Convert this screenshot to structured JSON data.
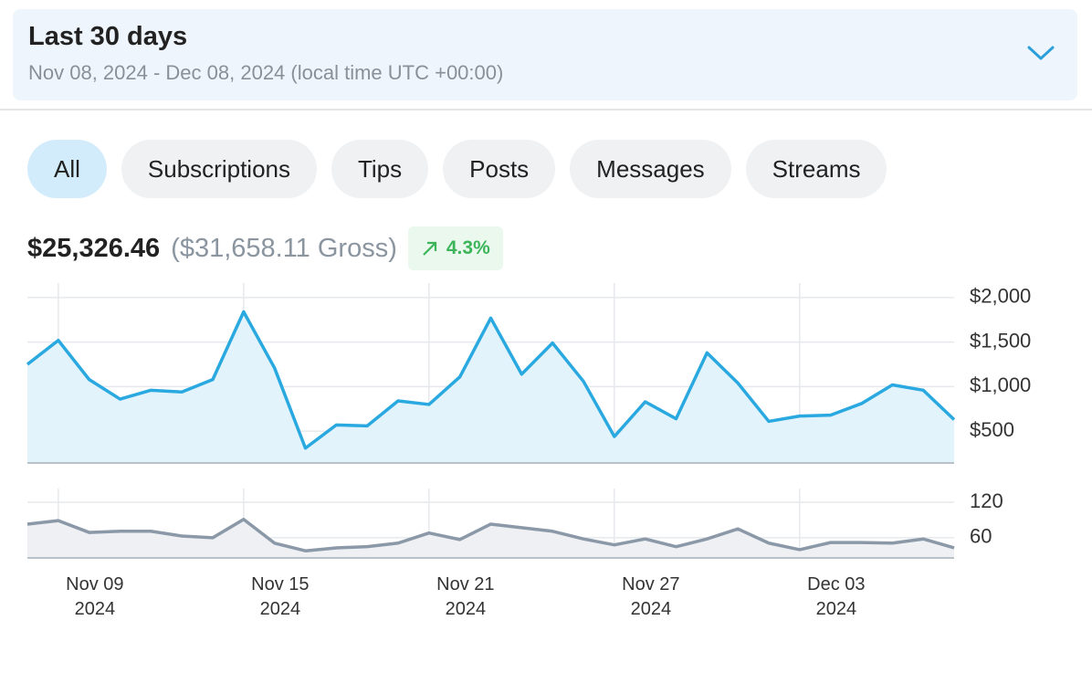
{
  "header": {
    "title": "Last 30 days",
    "subtitle": "Nov 08, 2024 - Dec 08, 2024 (local time UTC +00:00)"
  },
  "tabs": [
    "All",
    "Subscriptions",
    "Tips",
    "Posts",
    "Messages",
    "Streams"
  ],
  "summary": {
    "net": "$25,326.46",
    "gross": "($31,658.11 Gross)",
    "change": "4.3%"
  },
  "chart_data": [
    {
      "type": "area",
      "color": "#2aa8e0",
      "fill": "#e2f3fb",
      "x": [
        "2024-11-08",
        "2024-11-09",
        "2024-11-10",
        "2024-11-11",
        "2024-11-12",
        "2024-11-13",
        "2024-11-14",
        "2024-11-15",
        "2024-11-16",
        "2024-11-17",
        "2024-11-18",
        "2024-11-19",
        "2024-11-20",
        "2024-11-21",
        "2024-11-22",
        "2024-11-23",
        "2024-11-24",
        "2024-11-25",
        "2024-11-26",
        "2024-11-27",
        "2024-11-28",
        "2024-11-29",
        "2024-11-30",
        "2024-12-01",
        "2024-12-02",
        "2024-12-03",
        "2024-12-04",
        "2024-12-05",
        "2024-12-06",
        "2024-12-07",
        "2024-12-08"
      ],
      "xlim": [
        "2024-11-08",
        "2024-12-08"
      ],
      "values": [
        1250,
        1520,
        1080,
        860,
        960,
        940,
        1080,
        1840,
        1210,
        310,
        570,
        560,
        840,
        800,
        1110,
        1770,
        1140,
        1490,
        1060,
        440,
        830,
        640,
        1380,
        1040,
        610,
        670,
        680,
        810,
        1020,
        960,
        630
      ],
      "ylim": [
        143,
        2163
      ],
      "yticks": [
        {
          "value": 500,
          "label": "$500"
        },
        {
          "value": 1000,
          "label": "$1,000"
        },
        {
          "value": 1500,
          "label": "$1,500"
        },
        {
          "value": 2000,
          "label": "$2,000"
        }
      ],
      "grid": true
    },
    {
      "type": "area",
      "color": "#8a98a8",
      "fill": "#eef0f3",
      "x": [
        "2024-11-08",
        "2024-11-09",
        "2024-11-10",
        "2024-11-11",
        "2024-11-12",
        "2024-11-13",
        "2024-11-14",
        "2024-11-15",
        "2024-11-16",
        "2024-11-17",
        "2024-11-18",
        "2024-11-19",
        "2024-11-20",
        "2024-11-21",
        "2024-11-22",
        "2024-11-23",
        "2024-11-24",
        "2024-11-25",
        "2024-11-26",
        "2024-11-27",
        "2024-11-28",
        "2024-11-29",
        "2024-11-30",
        "2024-12-01",
        "2024-12-02",
        "2024-12-03",
        "2024-12-04",
        "2024-12-05",
        "2024-12-06",
        "2024-12-07",
        "2024-12-08"
      ],
      "xlim": [
        "2024-11-08",
        "2024-12-08"
      ],
      "values": [
        83,
        89,
        69,
        71,
        71,
        63,
        60,
        91,
        51,
        38,
        43,
        45,
        51,
        68,
        57,
        83,
        77,
        71,
        58,
        48,
        58,
        45,
        58,
        75,
        51,
        40,
        52,
        52,
        51,
        58,
        43
      ],
      "ylim": [
        26,
        143
      ],
      "yticks": [
        60,
        120
      ],
      "xticks": [
        {
          "value": "2024-11-09",
          "label": "Nov 09 2024"
        },
        {
          "value": "2024-11-15",
          "label": "Nov 15 2024"
        },
        {
          "value": "2024-11-21",
          "label": "Nov 21 2024"
        },
        {
          "value": "2024-11-27",
          "label": "Nov 27 2024"
        },
        {
          "value": "2024-12-03",
          "label": "Dec 03 2024"
        }
      ],
      "grid": true
    }
  ]
}
